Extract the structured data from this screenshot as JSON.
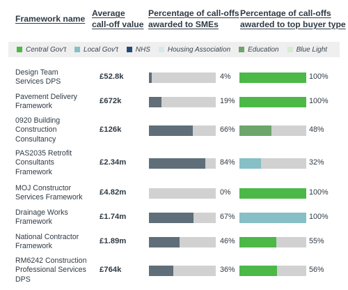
{
  "headers": {
    "name": [
      "Framework name"
    ],
    "avg": [
      "Average",
      "call-off value"
    ],
    "sme": [
      "Percentage of call-offs",
      "awarded to SMEs"
    ],
    "top": [
      "Percentage of call-offs",
      "awarded to top buyer type"
    ]
  },
  "legend": [
    {
      "label": "Central Gov't",
      "color": "#4cb848"
    },
    {
      "label": "Local Gov't",
      "color": "#86bfc6"
    },
    {
      "label": "NHS",
      "color": "#244c73"
    },
    {
      "label": "Housing Association",
      "color": "#d7e8ec"
    },
    {
      "label": "Education",
      "color": "#6ea56c"
    },
    {
      "label": "Blue Light",
      "color": "#d5ecd1"
    }
  ],
  "colors": {
    "sme_fill": "#5f6e79",
    "bar_track": "#d1d1d1"
  },
  "rows": [
    {
      "name": [
        "Design Team",
        "Services DPS"
      ],
      "avg": "£52.8k",
      "sme_pct": 4,
      "sme_label": "4%",
      "top_pct": 100,
      "top_label": "100%",
      "top_type": "Central Gov't"
    },
    {
      "name": [
        "Pavement Delivery",
        "Framework"
      ],
      "avg": "£672k",
      "sme_pct": 19,
      "sme_label": "19%",
      "top_pct": 100,
      "top_label": "100%",
      "top_type": "Central Gov't"
    },
    {
      "name": [
        "0920 Building",
        "Construction",
        "Consultancy"
      ],
      "avg": "£126k",
      "sme_pct": 66,
      "sme_label": "66%",
      "top_pct": 48,
      "top_label": "48%",
      "top_type": "Education"
    },
    {
      "name": [
        "PAS2035 Retrofit",
        "Consultants",
        "Framework"
      ],
      "avg": "£2.34m",
      "sme_pct": 84,
      "sme_label": "84%",
      "top_pct": 32,
      "top_label": "32%",
      "top_type": "Local Gov't"
    },
    {
      "name": [
        "MOJ Constructor",
        "Services Framework"
      ],
      "avg": "£4.82m",
      "sme_pct": 0,
      "sme_label": "0%",
      "top_pct": 100,
      "top_label": "100%",
      "top_type": "Central Gov't"
    },
    {
      "name": [
        "Drainage Works",
        "Framework"
      ],
      "avg": "£1.74m",
      "sme_pct": 67,
      "sme_label": "67%",
      "top_pct": 100,
      "top_label": "100%",
      "top_type": "Local Gov't"
    },
    {
      "name": [
        "National Contractor",
        "Framework"
      ],
      "avg": "£1.89m",
      "sme_pct": 46,
      "sme_label": "46%",
      "top_pct": 55,
      "top_label": "55%",
      "top_type": "Central Gov't"
    },
    {
      "name": [
        "RM6242 Construction",
        "Professional Services",
        "DPS"
      ],
      "avg": "£764k",
      "sme_pct": 36,
      "sme_label": "36%",
      "top_pct": 56,
      "top_label": "56%",
      "top_type": "Central Gov't"
    }
  ]
}
